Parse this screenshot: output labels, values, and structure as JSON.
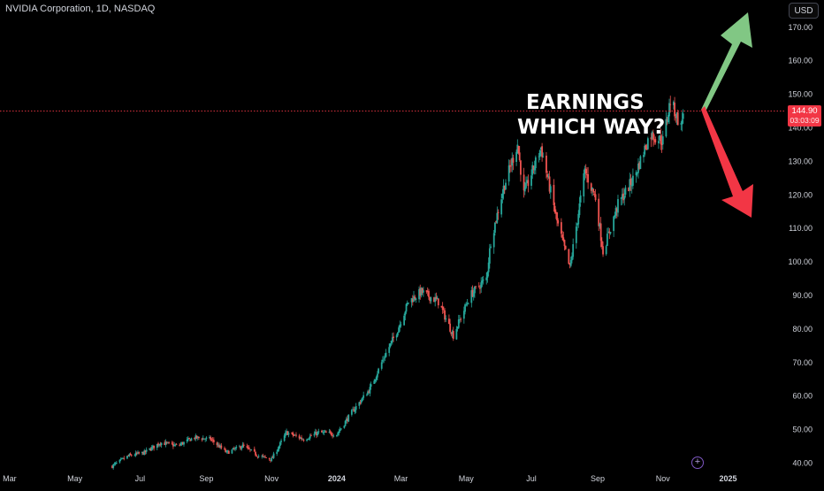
{
  "symbol": {
    "title": "NVIDIA Corporation, 1D, NASDAQ"
  },
  "currency": "USD",
  "last_price": {
    "value": "144.90",
    "countdown": "03:03:09",
    "numeric": 144.9
  },
  "annotation": {
    "line1": "EARNINGS",
    "line2": "WHICH WAY?"
  },
  "colors": {
    "background": "#000000",
    "up": "#26a69a",
    "down": "#ef5350",
    "price_line": "#f23645",
    "arrow_up": "#81c784",
    "arrow_down": "#f23645",
    "axis_text": "#d1d4dc"
  },
  "icons": {
    "add": "plus-circle-icon",
    "arrow_up": "up-arrow-icon",
    "arrow_down": "down-arrow-icon"
  },
  "chart_data": {
    "type": "candlestick",
    "title": "NVIDIA Corporation, 1D, NASDAQ",
    "y_ticks": [
      40,
      50,
      60,
      70,
      80,
      90,
      100,
      110,
      120,
      130,
      140,
      150,
      160,
      170
    ],
    "y_tick_labels": [
      "40.00",
      "50.00",
      "60.00",
      "70.00",
      "80.00",
      "90.00",
      "100.00",
      "110.00",
      "120.00",
      "130.00",
      "140.00",
      "150.00",
      "160.00",
      "170.00"
    ],
    "ylim": [
      38,
      175
    ],
    "x_ticks": [
      "2023-03-01",
      "2023-05-01",
      "2023-07-01",
      "2023-09-01",
      "2023-11-01",
      "2024-01-01",
      "2024-03-01",
      "2024-05-01",
      "2024-07-01",
      "2024-09-01",
      "2024-11-01",
      "2025-01-01"
    ],
    "x_tick_labels": [
      "Mar",
      "May",
      "Jul",
      "Sep",
      "Nov",
      "2024",
      "Mar",
      "May",
      "Jul",
      "Sep",
      "Nov",
      "2025"
    ],
    "xlim": [
      "2023-02-20",
      "2025-02-20"
    ],
    "close_path": [
      [
        "2023-06-05",
        39.0
      ],
      [
        "2023-06-20",
        42.0
      ],
      [
        "2023-07-05",
        43.0
      ],
      [
        "2023-07-20",
        46.0
      ],
      [
        "2023-08-05",
        45.0
      ],
      [
        "2023-08-20",
        47.5
      ],
      [
        "2023-09-05",
        47.0
      ],
      [
        "2023-09-20",
        43.0
      ],
      [
        "2023-10-05",
        45.0
      ],
      [
        "2023-10-20",
        42.0
      ],
      [
        "2023-11-01",
        41.0
      ],
      [
        "2023-11-15",
        49.0
      ],
      [
        "2023-12-01",
        47.0
      ],
      [
        "2023-12-15",
        49.0
      ],
      [
        "2024-01-01",
        48.5
      ],
      [
        "2024-01-15",
        55.0
      ],
      [
        "2024-02-01",
        62.0
      ],
      [
        "2024-02-15",
        72.0
      ],
      [
        "2024-02-26",
        79.0
      ],
      [
        "2024-03-08",
        88.0
      ],
      [
        "2024-03-20",
        91.0
      ],
      [
        "2024-04-05",
        88.0
      ],
      [
        "2024-04-19",
        78.0
      ],
      [
        "2024-05-05",
        90.0
      ],
      [
        "2024-05-20",
        95.0
      ],
      [
        "2024-05-24",
        106.0
      ],
      [
        "2024-06-05",
        122.0
      ],
      [
        "2024-06-18",
        135.0
      ],
      [
        "2024-06-24",
        120.0
      ],
      [
        "2024-07-10",
        134.0
      ],
      [
        "2024-07-25",
        112.0
      ],
      [
        "2024-08-06",
        98.0
      ],
      [
        "2024-08-20",
        127.0
      ],
      [
        "2024-08-30",
        119.0
      ],
      [
        "2024-09-06",
        103.0
      ],
      [
        "2024-09-20",
        117.0
      ],
      [
        "2024-10-05",
        125.0
      ],
      [
        "2024-10-20",
        138.0
      ],
      [
        "2024-11-01",
        136.0
      ],
      [
        "2024-11-08",
        148.0
      ],
      [
        "2024-11-18",
        140.0
      ],
      [
        "2024-11-20",
        145.0
      ]
    ]
  }
}
